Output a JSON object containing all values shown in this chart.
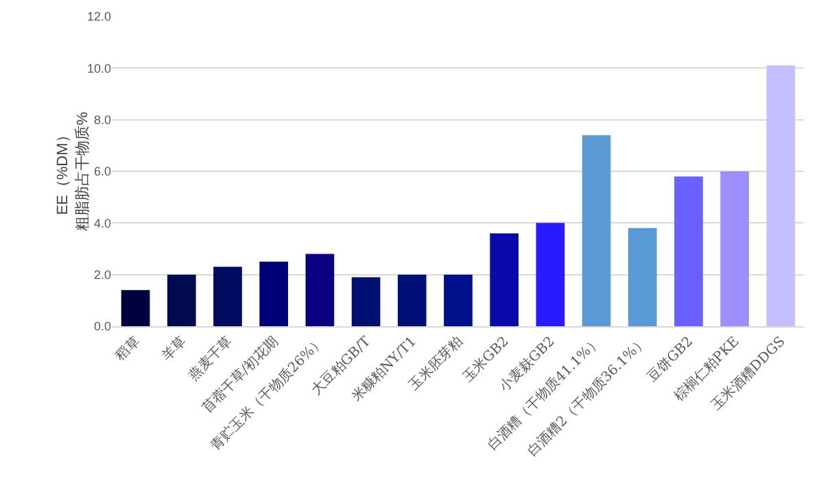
{
  "chart_data": {
    "type": "bar",
    "ylabel": "EE（%DM）粗脂肪占干物质%",
    "categories": [
      "稻草",
      "羊草",
      "燕麦干草",
      "苜蓿干草/初花期",
      "青贮玉米（干物质26%）",
      "大豆粕GB/T",
      "米糠粕NY/T1",
      "玉米胚芽粕",
      "玉米GB2",
      "小麦麸GB2",
      "白酒糟（干物质41.1%）",
      "白酒糟2（干物质36.1%）",
      "豆饼GB2",
      "棕榈仁粕PKE",
      "玉米酒糟DDGS"
    ],
    "values": [
      1.4,
      2.0,
      2.3,
      2.5,
      2.8,
      1.9,
      2.0,
      2.0,
      3.6,
      4.0,
      7.4,
      3.8,
      5.8,
      6.0,
      10.1
    ],
    "colors": [
      "#00003c",
      "#000a4e",
      "#000a5e",
      "#00007a",
      "#0a0080",
      "#001070",
      "#001078",
      "#00108a",
      "#0a0aaa",
      "#2a1aff",
      "#5b9bd5",
      "#5b9bd5",
      "#6a5fff",
      "#9b8fff",
      "#c4c0ff"
    ],
    "ylim": [
      0,
      12
    ],
    "yticks": [
      {
        "value": 0,
        "label": "0.0"
      },
      {
        "value": 2,
        "label": "2.0"
      },
      {
        "value": 4,
        "label": "4.0"
      },
      {
        "value": 6,
        "label": "6.0"
      },
      {
        "value": 8,
        "label": "8.0"
      },
      {
        "value": 10,
        "label": "10.0"
      },
      {
        "value": 12,
        "label": "12.0"
      }
    ],
    "grid": "y"
  }
}
